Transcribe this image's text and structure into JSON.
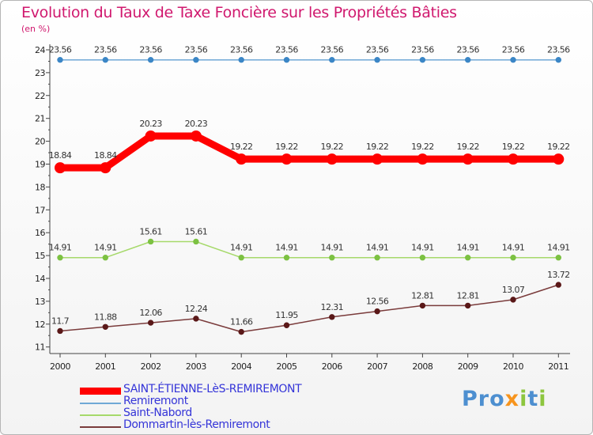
{
  "title": "Evolution du Taux de Taxe Foncière sur les Propriétés Bâties",
  "unit_label": "(en %)",
  "logo": {
    "p1": "Pro",
    "x": "x",
    "p2": "i",
    "t": "t",
    "i2": "i"
  },
  "chart_data": {
    "type": "line",
    "title": "Evolution du Taux de Taxe Foncière sur les Propriétés Bâties",
    "ylabel": "(en %)",
    "xlabel": "",
    "x": [
      "2000",
      "2001",
      "2002",
      "2003",
      "2004",
      "2005",
      "2006",
      "2007",
      "2008",
      "2009",
      "2010",
      "2011"
    ],
    "ylim": [
      11,
      24
    ],
    "yticks": [
      11,
      12,
      13,
      14,
      15,
      16,
      17,
      18,
      19,
      20,
      21,
      22,
      23,
      24
    ],
    "grid": false,
    "legend_position": "bottom-left",
    "series": [
      {
        "name": "SAINT-ÉTIENNE-LèS-REMIREMONT",
        "color": "#ff0000",
        "marker": "#ff0000",
        "width": "thick",
        "values": [
          18.84,
          18.84,
          20.23,
          20.23,
          19.22,
          19.22,
          19.22,
          19.22,
          19.22,
          19.22,
          19.22,
          19.22
        ],
        "labels": [
          "18.84",
          "18.84",
          "20.23",
          "20.23",
          "19.22",
          "19.22",
          "19.22",
          "19.22",
          "19.22",
          "19.22",
          "19.22",
          "19.22"
        ]
      },
      {
        "name": "Remiremont",
        "color": "#6fa8d6",
        "marker": "#3b86c6",
        "width": "thin",
        "values": [
          23.56,
          23.56,
          23.56,
          23.56,
          23.56,
          23.56,
          23.56,
          23.56,
          23.56,
          23.56,
          23.56,
          23.56
        ],
        "labels": [
          "23.56",
          "23.56",
          "23.56",
          "23.56",
          "23.56",
          "23.56",
          "23.56",
          "23.56",
          "23.56",
          "23.56",
          "23.56",
          "23.56"
        ]
      },
      {
        "name": "Saint-Nabord",
        "color": "#a6d96a",
        "marker": "#7cc142",
        "width": "thin",
        "values": [
          14.91,
          14.91,
          15.61,
          15.61,
          14.91,
          14.91,
          14.91,
          14.91,
          14.91,
          14.91,
          14.91,
          14.91
        ],
        "labels": [
          "14.91",
          "14.91",
          "15.61",
          "15.61",
          "14.91",
          "14.91",
          "14.91",
          "14.91",
          "14.91",
          "14.91",
          "14.91",
          "14.91"
        ]
      },
      {
        "name": "Dommartin-lès-Remiremont",
        "color": "#7a3b3b",
        "marker": "#5a1818",
        "width": "thin",
        "values": [
          11.7,
          11.88,
          12.06,
          12.24,
          11.66,
          11.95,
          12.31,
          12.56,
          12.81,
          12.81,
          13.07,
          13.72
        ],
        "labels": [
          "11.7",
          "11.88",
          "12.06",
          "12.24",
          "11.66",
          "11.95",
          "12.31",
          "12.56",
          "12.81",
          "12.81",
          "13.07",
          "13.72"
        ]
      }
    ]
  }
}
